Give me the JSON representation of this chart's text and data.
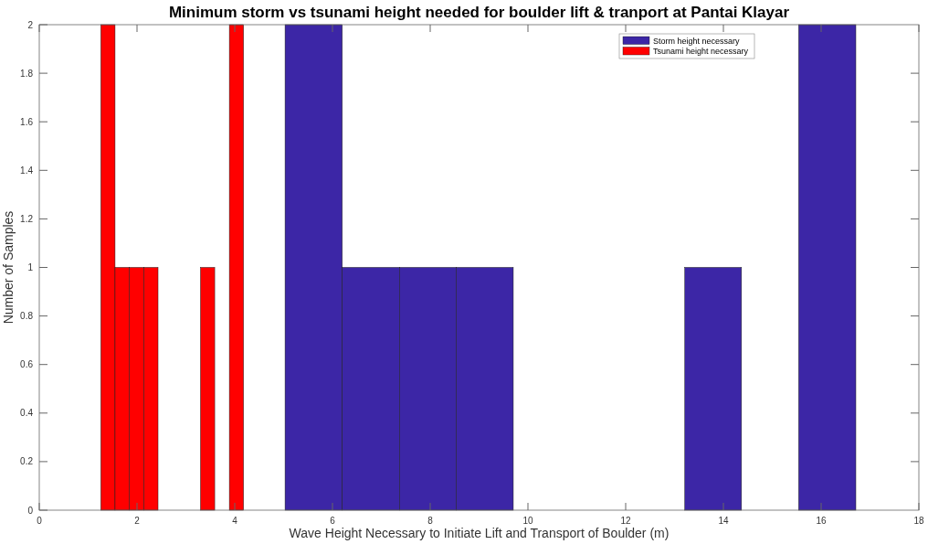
{
  "chart_data": {
    "type": "histogram",
    "title": "Minimum storm vs tsunami height needed for boulder lift & tranport at Pantai Klayar",
    "xlabel": "Wave Height Necessary to Initiate Lift and Transport of Boulder (m)",
    "ylabel": "Number of Samples",
    "bins": [
      1.26,
      1.55,
      1.84,
      2.14,
      2.43,
      3.3,
      3.59,
      3.89,
      4.18,
      5.03,
      6.2,
      7.37,
      8.53,
      9.7,
      13.21,
      14.37,
      15.54,
      16.71
    ],
    "series": [
      {
        "name": "Storm height necessary",
        "color": "#3c26a6",
        "values": [
          0,
          0,
          0,
          0,
          0,
          0,
          0,
          0,
          0,
          2,
          1,
          1,
          1,
          0,
          1,
          0,
          2
        ]
      },
      {
        "name": "Tsunami height necessary",
        "color": "#ff0000",
        "values": [
          2,
          1,
          1,
          1,
          0,
          1,
          0,
          2,
          0,
          0,
          0,
          0,
          0,
          0,
          0,
          0,
          0
        ]
      }
    ],
    "xlim": [
      0,
      18
    ],
    "xticks": [
      0,
      2,
      4,
      6,
      8,
      10,
      12,
      14,
      16,
      18
    ],
    "ylim": [
      0,
      2
    ],
    "yticks": [
      0,
      0.2,
      0.4,
      0.6,
      0.8,
      1,
      1.2,
      1.4,
      1.6,
      1.8,
      2
    ],
    "legend": "top right"
  }
}
